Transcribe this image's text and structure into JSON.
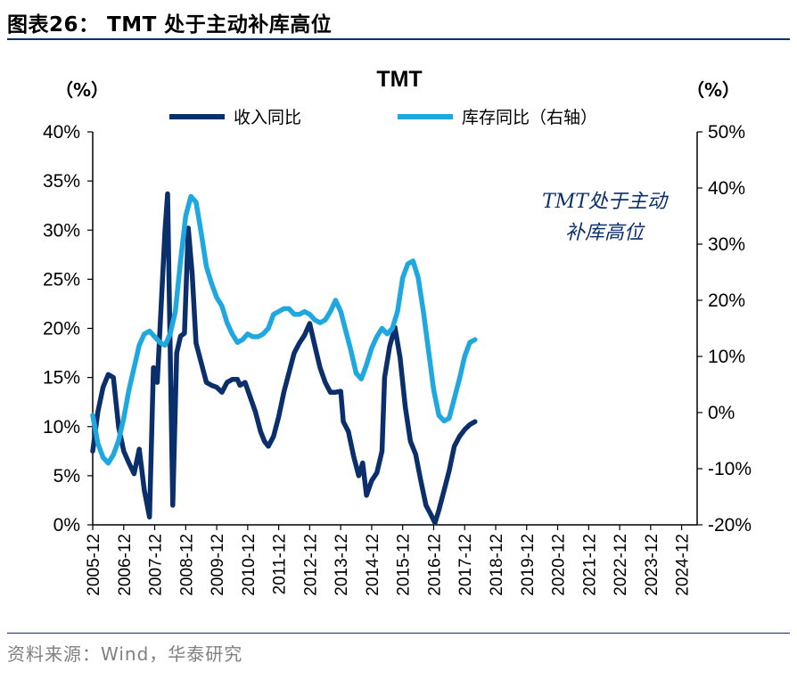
{
  "header": {
    "figure_title": "图表26： TMT 处于主动补库高位",
    "source": "资料来源：Wind，华泰研究"
  },
  "chart_data": {
    "type": "line",
    "title": "TMT",
    "left_unit": "（%）",
    "right_unit": "（%）",
    "annotation": [
      "TMT处于主动",
      "补库高位"
    ],
    "left_axis": {
      "ylim": [
        0,
        40
      ],
      "ticks": [
        0,
        5,
        10,
        15,
        20,
        25,
        30,
        35,
        40
      ]
    },
    "right_axis": {
      "ylim": [
        -20,
        50
      ],
      "ticks": [
        -20,
        -10,
        0,
        10,
        20,
        30,
        40,
        50
      ]
    },
    "x_ticks": [
      "2005-12",
      "2006-12",
      "2007-12",
      "2008-12",
      "2009-12",
      "2010-12",
      "2011-12",
      "2012-12",
      "2013-12",
      "2014-12",
      "2015-12",
      "2016-12",
      "2017-12",
      "2018-12",
      "2019-12",
      "2020-12",
      "2021-12",
      "2022-12",
      "2023-12",
      "2024-12"
    ],
    "x_start": "2005-12",
    "series": [
      {
        "name": "收入同比",
        "axis": "left",
        "color": "#0b2f6b",
        "points": [
          [
            0,
            7.5
          ],
          [
            2,
            11.5
          ],
          [
            4,
            14
          ],
          [
            6,
            15.3
          ],
          [
            8,
            15
          ],
          [
            10,
            10
          ],
          [
            12,
            7.5
          ],
          [
            14,
            6.3
          ],
          [
            16,
            5.2
          ],
          [
            18,
            7.7
          ],
          [
            20,
            3.5
          ],
          [
            22,
            0.8
          ],
          [
            23.5,
            16
          ],
          [
            25,
            14.5
          ],
          [
            28,
            30
          ],
          [
            29,
            33.7
          ],
          [
            31,
            2
          ],
          [
            32.5,
            17.5
          ],
          [
            34,
            19.2
          ],
          [
            35.5,
            19.5
          ],
          [
            37,
            30.2
          ],
          [
            38.5,
            25.5
          ],
          [
            40,
            18.5
          ],
          [
            42,
            16.5
          ],
          [
            44,
            14.5
          ],
          [
            46,
            14.2
          ],
          [
            48,
            14
          ],
          [
            50,
            13.5
          ],
          [
            52,
            14.5
          ],
          [
            54,
            14.8
          ],
          [
            56,
            14.8
          ],
          [
            57,
            14.2
          ],
          [
            59,
            14.5
          ],
          [
            61,
            13
          ],
          [
            63,
            11.5
          ],
          [
            65,
            9.5
          ],
          [
            66.5,
            8.5
          ],
          [
            68,
            8
          ],
          [
            70,
            9
          ],
          [
            72,
            11
          ],
          [
            74,
            13.5
          ],
          [
            76,
            15.5
          ],
          [
            78,
            17.5
          ],
          [
            80,
            18.5
          ],
          [
            82,
            19.3
          ],
          [
            84,
            20.5
          ],
          [
            86,
            18.2
          ],
          [
            88,
            16
          ],
          [
            90,
            14.5
          ],
          [
            92,
            13.5
          ],
          [
            94,
            13.5
          ],
          [
            96,
            13.6
          ],
          [
            97,
            10.5
          ],
          [
            99,
            9.5
          ],
          [
            101,
            7
          ],
          [
            103,
            5
          ],
          [
            104.5,
            6.3
          ],
          [
            106,
            3
          ],
          [
            108,
            4.5
          ],
          [
            110,
            5.3
          ],
          [
            112,
            7.5
          ],
          [
            113,
            15
          ],
          [
            115,
            18.2
          ],
          [
            117,
            20.1
          ],
          [
            119,
            17
          ],
          [
            121,
            12
          ],
          [
            123,
            8.5
          ],
          [
            125,
            7.2
          ],
          [
            127,
            4.5
          ],
          [
            129,
            2
          ],
          [
            131,
            1
          ],
          [
            132.5,
            0.2
          ],
          [
            134,
            1.5
          ],
          [
            136,
            3.5
          ],
          [
            138,
            5.5
          ],
          [
            140,
            8
          ],
          [
            142,
            9
          ],
          [
            144,
            9.7
          ],
          [
            146,
            10.2
          ],
          [
            148,
            10.5
          ]
        ]
      },
      {
        "name": "库存同比（右轴）",
        "axis": "right",
        "color": "#1fa8e0",
        "points": [
          [
            0,
            -0.5
          ],
          [
            2,
            -5.5
          ],
          [
            4,
            -8
          ],
          [
            6,
            -9
          ],
          [
            8,
            -7.5
          ],
          [
            10,
            -5
          ],
          [
            12,
            -1
          ],
          [
            14,
            4
          ],
          [
            16,
            8
          ],
          [
            18,
            12
          ],
          [
            20,
            14
          ],
          [
            22,
            14.5
          ],
          [
            24,
            13.5
          ],
          [
            26,
            12.5
          ],
          [
            28,
            12
          ],
          [
            30,
            14
          ],
          [
            32,
            18
          ],
          [
            34,
            27
          ],
          [
            36,
            35
          ],
          [
            38,
            38.5
          ],
          [
            40,
            37.5
          ],
          [
            42,
            32
          ],
          [
            44,
            26
          ],
          [
            46,
            23
          ],
          [
            48,
            20.5
          ],
          [
            50,
            19
          ],
          [
            52,
            16
          ],
          [
            54,
            14
          ],
          [
            56,
            12.5
          ],
          [
            58,
            13
          ],
          [
            60,
            14
          ],
          [
            62,
            13.5
          ],
          [
            64,
            13.5
          ],
          [
            66,
            14
          ],
          [
            68,
            15
          ],
          [
            70,
            17.5
          ],
          [
            72,
            18
          ],
          [
            74,
            18.5
          ],
          [
            76,
            18.5
          ],
          [
            78,
            17.5
          ],
          [
            80,
            17.5
          ],
          [
            82,
            18
          ],
          [
            84,
            17.5
          ],
          [
            86,
            16.5
          ],
          [
            88,
            16
          ],
          [
            90,
            16.5
          ],
          [
            92,
            18
          ],
          [
            94,
            20
          ],
          [
            96,
            18
          ],
          [
            98,
            14.5
          ],
          [
            100,
            11
          ],
          [
            102,
            7
          ],
          [
            104,
            6
          ],
          [
            106,
            8.5
          ],
          [
            108,
            11.5
          ],
          [
            110,
            13.5
          ],
          [
            112,
            15
          ],
          [
            114,
            14
          ],
          [
            116,
            15
          ],
          [
            118,
            18
          ],
          [
            120,
            24
          ],
          [
            122,
            26.5
          ],
          [
            124,
            27
          ],
          [
            126,
            24
          ],
          [
            128,
            18
          ],
          [
            130,
            11
          ],
          [
            132,
            4
          ],
          [
            134,
            -0.5
          ],
          [
            136,
            -1.5
          ],
          [
            138,
            -1
          ],
          [
            140,
            2.5
          ],
          [
            142,
            6
          ],
          [
            144,
            10
          ],
          [
            146,
            12.5
          ],
          [
            148,
            13
          ]
        ]
      }
    ]
  }
}
